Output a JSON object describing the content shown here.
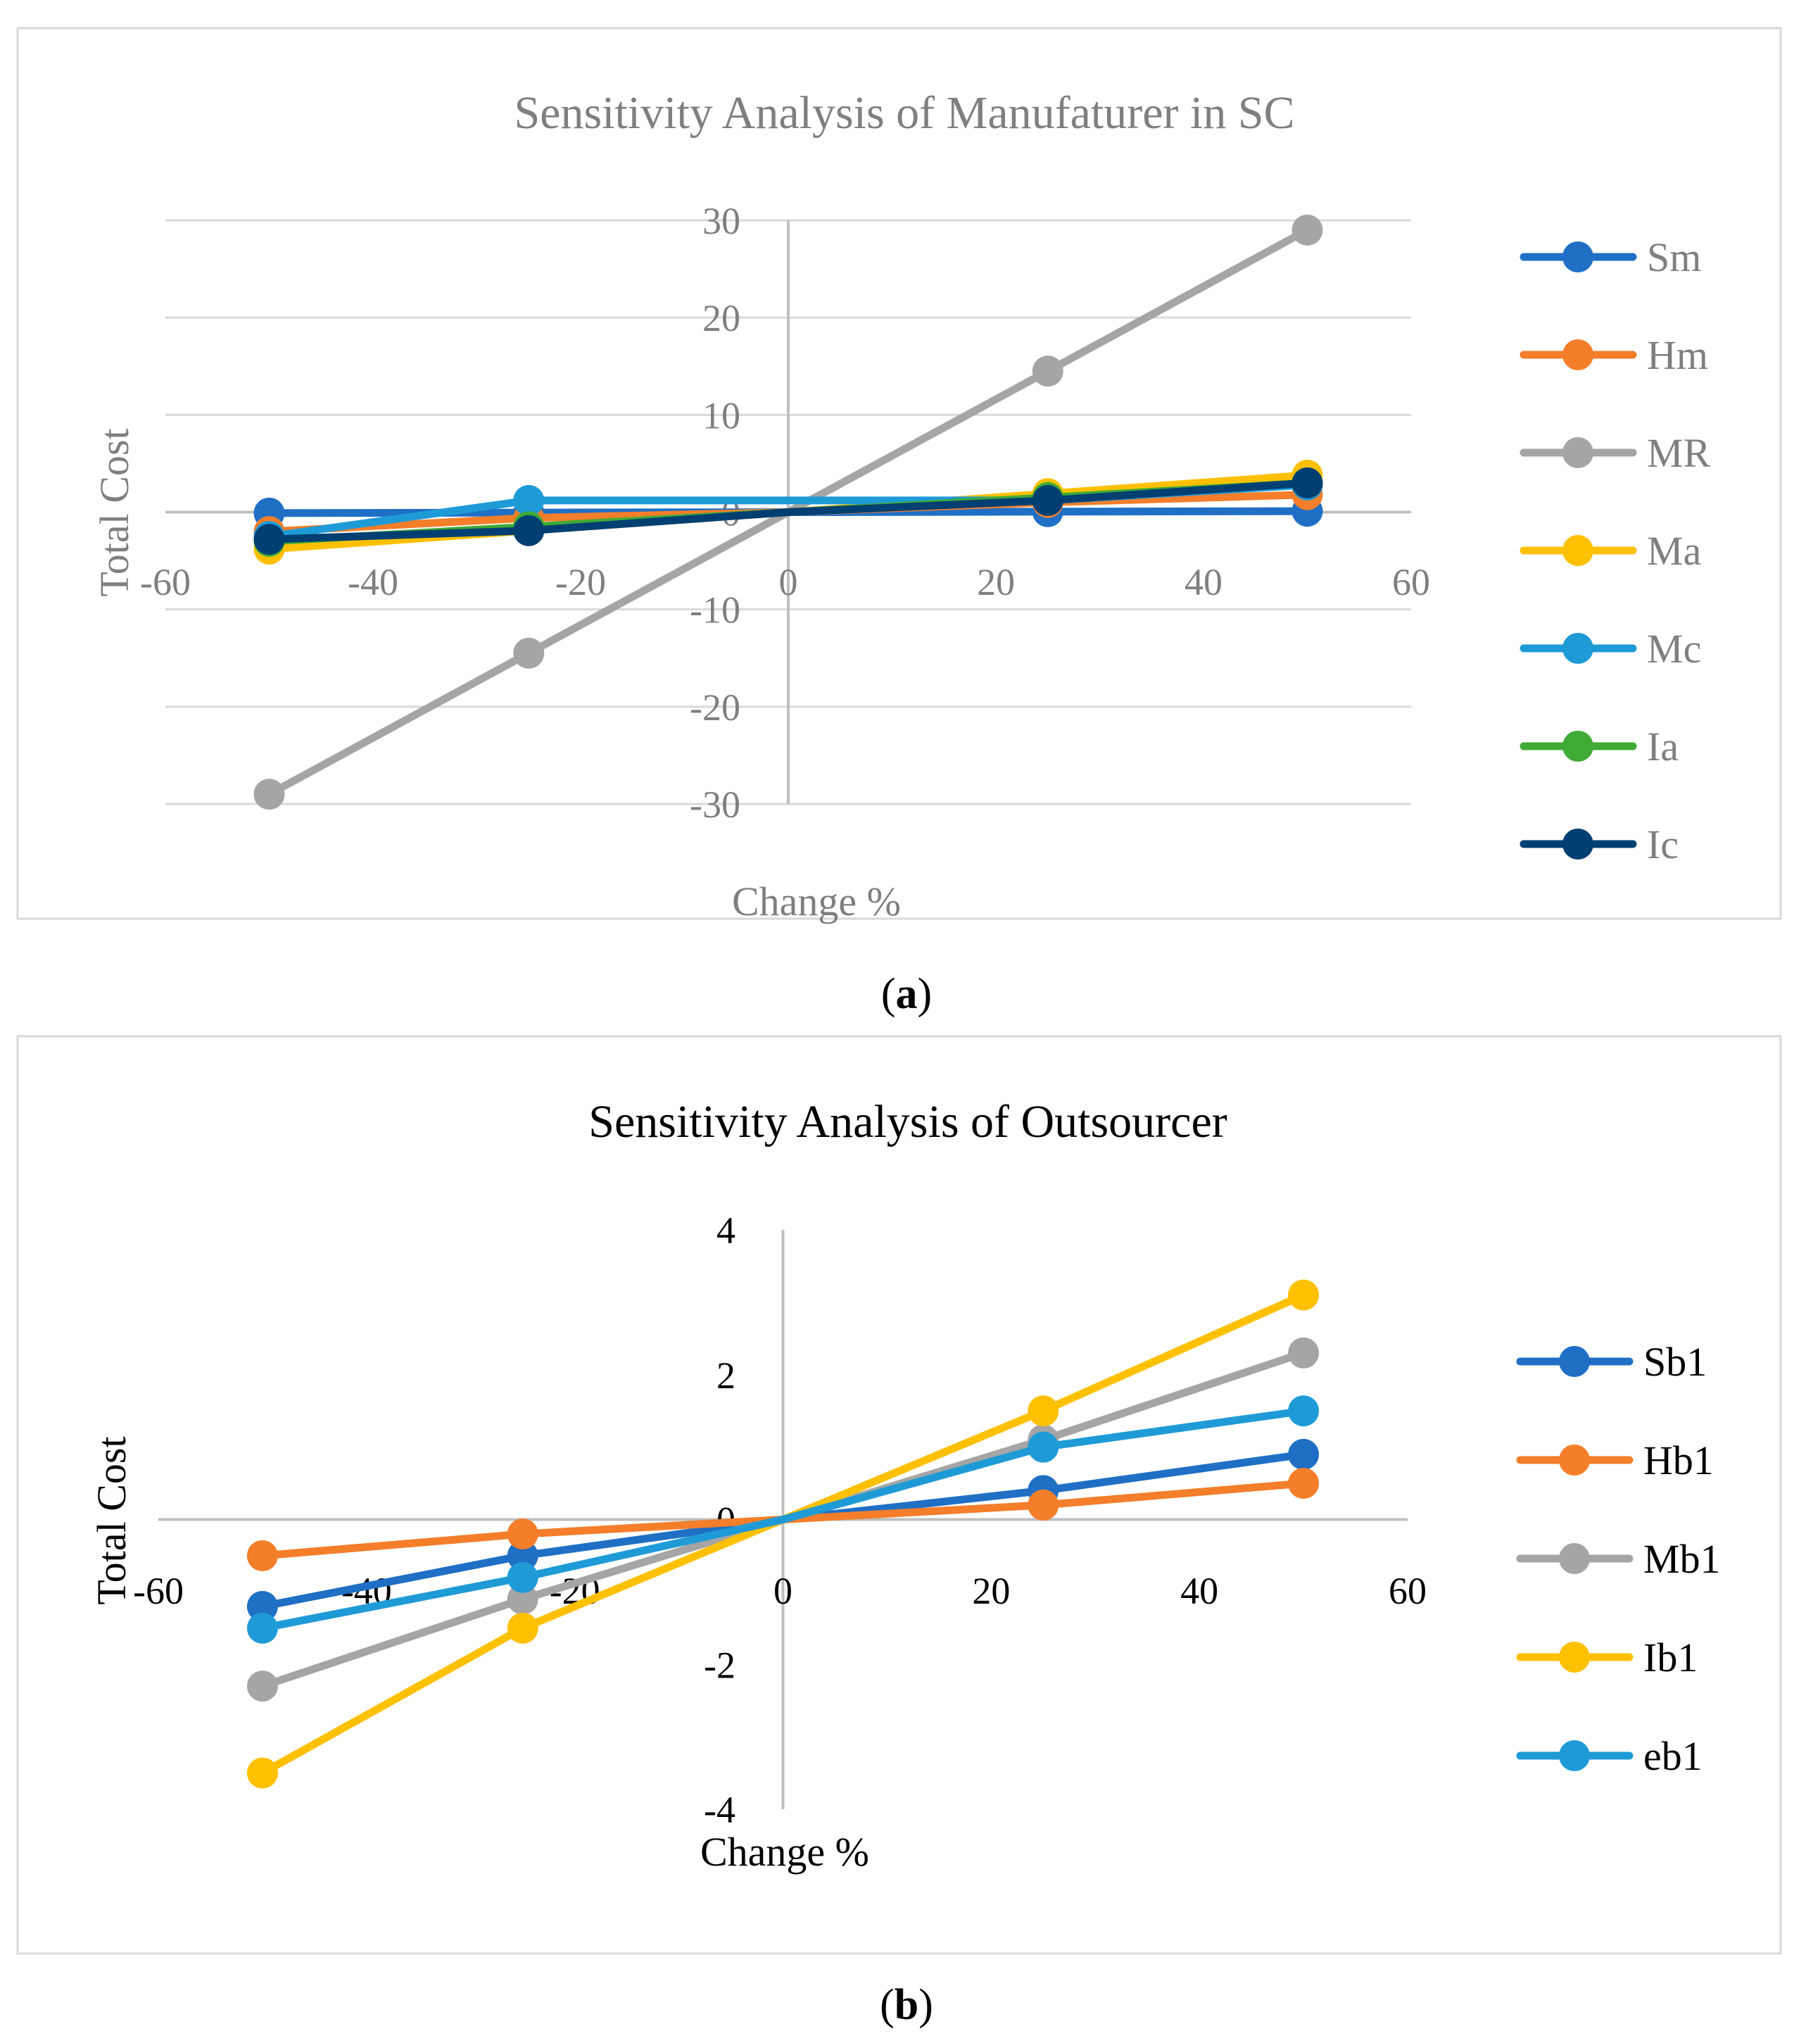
{
  "chart_data": [
    {
      "type": "line",
      "panel_label": "a",
      "title": "Sensitivity Analysis of Manufaturer in SC",
      "xlabel": "Change %",
      "ylabel": "Total Cost",
      "xlim": [
        -60,
        60
      ],
      "ylim": [
        -30,
        30
      ],
      "xticks": [
        -60,
        -40,
        -20,
        0,
        20,
        40,
        60
      ],
      "yticks": [
        -30,
        -20,
        -10,
        0,
        10,
        20,
        30
      ],
      "x": [
        -50,
        -25,
        0,
        25,
        50
      ],
      "grid": true,
      "legend": "right",
      "series": [
        {
          "name": "Sm",
          "color": "#1F6FC5",
          "values": [
            -0.1,
            -0.05,
            0,
            0.05,
            0.1
          ]
        },
        {
          "name": "Hm",
          "color": "#F47E2A",
          "values": [
            -2,
            -0.6,
            0,
            1,
            1.8
          ]
        },
        {
          "name": "MR",
          "color": "#A5A5A5",
          "values": [
            -29,
            -14.5,
            0,
            14.5,
            29
          ]
        },
        {
          "name": "Ma",
          "color": "#FFC000",
          "values": [
            -3.8,
            -1.9,
            0,
            1.9,
            3.8
          ]
        },
        {
          "name": "Mc",
          "color": "#1E9BD7",
          "values": [
            -2.5,
            1.2,
            1.2,
            1.2,
            2.8
          ]
        },
        {
          "name": "Ia",
          "color": "#3FAA35",
          "values": [
            -3,
            -1.5,
            0,
            1.5,
            3
          ]
        },
        {
          "name": "Ic",
          "color": "#003F72",
          "values": [
            -2.8,
            -1.9,
            0,
            1.2,
            3
          ]
        }
      ]
    },
    {
      "type": "line",
      "panel_label": "b",
      "title": "Sensitivity Analysis of Outsourcer",
      "xlabel": "Change %",
      "ylabel": "Total Cost",
      "xlim": [
        -60,
        60
      ],
      "ylim": [
        -4,
        4
      ],
      "xticks": [
        -60,
        -40,
        -20,
        0,
        20,
        40,
        60
      ],
      "yticks": [
        -4,
        -2,
        0,
        2,
        4
      ],
      "x": [
        -50,
        -25,
        0,
        25,
        50
      ],
      "grid": false,
      "legend": "right",
      "series": [
        {
          "name": "Sb1",
          "color": "#1F6FC5",
          "values": [
            -1.2,
            -0.5,
            0,
            0.4,
            0.9
          ]
        },
        {
          "name": "Hb1",
          "color": "#F47E2A",
          "values": [
            -0.5,
            -0.2,
            0,
            0.2,
            0.5
          ]
        },
        {
          "name": "Mb1",
          "color": "#A5A5A5",
          "values": [
            -2.3,
            -1.1,
            0,
            1.1,
            2.3
          ]
        },
        {
          "name": "Ib1",
          "color": "#FFC000",
          "values": [
            -3.5,
            -1.5,
            0,
            1.5,
            3.1
          ]
        },
        {
          "name": "eb1",
          "color": "#1E9BD7",
          "values": [
            -1.5,
            -0.8,
            0,
            1.0,
            1.5
          ]
        }
      ]
    }
  ]
}
